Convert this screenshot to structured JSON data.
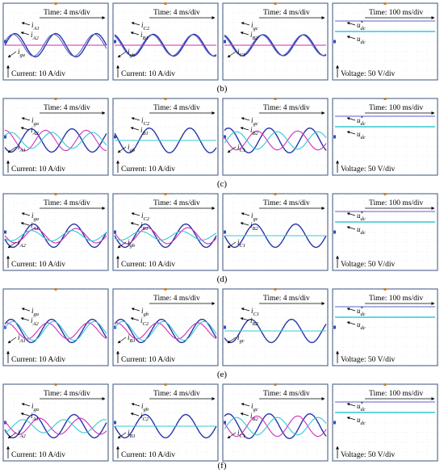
{
  "figure": {
    "colors": {
      "frame": "#5b6f93",
      "grid": "#d3d9e6",
      "blue": "#2635a8",
      "purple": "#5d62c8",
      "magenta": "#d02eb7",
      "cyan": "#36c8d4",
      "text": "#000000"
    },
    "rows": [
      {
        "label": "(b)",
        "panels": [
          {
            "time": "Time: 4 ms/div",
            "scale": "Current: 10 A/div",
            "annotations": [
              {
                "base": "i",
                "sub": "A1"
              },
              {
                "base": "i",
                "sub": "A2"
              },
              {
                "base": "i",
                "sub": "ga"
              }
            ],
            "traces": [
              {
                "color": "blue",
                "amp": 0.8,
                "phase": 0
              },
              {
                "color": "purple",
                "amp": 0.75,
                "phase": 0.05
              },
              {
                "color": "magenta",
                "amp": 0.0,
                "phase": 0
              }
            ]
          },
          {
            "time": "Time: 4 ms/div",
            "scale": "Current: 10 A/div",
            "annotations": [
              {
                "base": "i",
                "sub": "C2"
              },
              {
                "base": "i",
                "sub": "B1"
              },
              {
                "base": "i",
                "sub": "gb"
              }
            ],
            "traces": [
              {
                "color": "blue",
                "amp": 0.75,
                "phase": 0.3
              },
              {
                "color": "purple",
                "amp": 0.72,
                "phase": 0.33
              },
              {
                "color": "magenta",
                "amp": 0.0,
                "phase": 0
              }
            ]
          },
          {
            "time": "Time: 4 ms/div",
            "scale": "",
            "annotations": [
              {
                "base": "i",
                "sub": "gc"
              },
              {
                "base": "i",
                "sub": "B2"
              },
              {
                "base": "i",
                "sub": "C1"
              }
            ],
            "traces": [
              {
                "color": "blue",
                "amp": 0.72,
                "phase": 0.3
              },
              {
                "color": "purple",
                "amp": 0.7,
                "phase": 0.33
              },
              {
                "color": "magenta",
                "amp": 0.0,
                "phase": 0
              }
            ]
          },
          {
            "time": "Time: 100 ms/div",
            "scale": "Voltage: 50 V/div",
            "dc": true,
            "annotations": [
              {
                "base": "u",
                "sub": "dc",
                "sup": "*"
              },
              {
                "base": "u",
                "sub": "dc"
              }
            ]
          }
        ]
      },
      {
        "label": "(c)",
        "panels": [
          {
            "time": "Time: 4 ms/div",
            "scale": "Current: 10 A/div",
            "annotations": [
              {
                "base": "i",
                "sub": "ga"
              },
              {
                "base": "i",
                "sub": "A2"
              },
              {
                "base": "i",
                "sub": "A1"
              }
            ],
            "traces": [
              {
                "color": "blue",
                "amp": 0.8,
                "phase": 0.6
              },
              {
                "color": "magenta",
                "amp": 0.7,
                "phase": 0.25
              },
              {
                "color": "cyan",
                "amp": 0.55,
                "phase": 0.1
              }
            ]
          },
          {
            "time": "Time: 4 ms/div",
            "scale": "Current: 10 A/div",
            "annotations": [
              {
                "base": "i",
                "sub": "C2"
              },
              {
                "base": "i",
                "sub": "B1"
              },
              {
                "base": "i",
                "sub": "gb"
              }
            ],
            "traces": [
              {
                "color": "blue",
                "amp": 0.85,
                "phase": 0.4
              },
              {
                "color": "magenta",
                "amp": 0.0,
                "phase": 0
              },
              {
                "color": "cyan",
                "amp": 0.0,
                "phase": 0
              }
            ]
          },
          {
            "time": "Time: 4 ms/div",
            "scale": "",
            "annotations": [
              {
                "base": "i",
                "sub": "gc"
              },
              {
                "base": "i",
                "sub": "B2"
              },
              {
                "base": "i",
                "sub": "C1"
              }
            ],
            "traces": [
              {
                "color": "blue",
                "amp": 0.85,
                "phase": 0.15
              },
              {
                "color": "magenta",
                "amp": 0.65,
                "phase": 0.45
              },
              {
                "color": "cyan",
                "amp": 0.6,
                "phase": 0.95
              }
            ]
          },
          {
            "time": "Time: 100 ms/div",
            "scale": "Voltage: 50 V/div",
            "dc": true,
            "annotations": [
              {
                "base": "u",
                "sub": "dc",
                "sup": "*"
              },
              {
                "base": "u",
                "sub": "dc"
              }
            ]
          }
        ]
      },
      {
        "label": "(d)",
        "panels": [
          {
            "time": "Time: 4 ms/div",
            "scale": "Current: 10 A/div",
            "annotations": [
              {
                "base": "i",
                "sub": "ga"
              },
              {
                "base": "i",
                "sub": "A1"
              },
              {
                "base": "i",
                "sub": "A2"
              }
            ],
            "traces": [
              {
                "color": "blue",
                "amp": 0.8,
                "phase": 0.55
              },
              {
                "color": "magenta",
                "amp": 0.5,
                "phase": 0.5
              },
              {
                "color": "cyan",
                "amp": 0.35,
                "phase": 0.6
              }
            ]
          },
          {
            "time": "Time: 4 ms/div",
            "scale": "Current: 10 A/div",
            "annotations": [
              {
                "base": "i",
                "sub": "C2"
              },
              {
                "base": "i",
                "sub": "B1"
              },
              {
                "base": "i",
                "sub": "gb"
              }
            ],
            "traces": [
              {
                "color": "blue",
                "amp": 0.8,
                "phase": 0.5
              },
              {
                "color": "magenta",
                "amp": 0.55,
                "phase": 0.45
              },
              {
                "color": "cyan",
                "amp": 0.3,
                "phase": 0.6
              }
            ]
          },
          {
            "time": "Time: 4 ms/div",
            "scale": "",
            "annotations": [
              {
                "base": "i",
                "sub": "gc"
              },
              {
                "base": "i",
                "sub": "B2"
              },
              {
                "base": "i",
                "sub": "C1"
              }
            ],
            "traces": [
              {
                "color": "blue",
                "amp": 0.8,
                "phase": 0.5
              },
              {
                "color": "magenta",
                "amp": 0.0,
                "phase": 0
              },
              {
                "color": "cyan",
                "amp": 0.0,
                "phase": 0
              }
            ]
          },
          {
            "time": "Time: 100 ms/div",
            "scale": "Voltage: 50 V/div",
            "dc": true,
            "annotations": [
              {
                "base": "u",
                "sub": "dc",
                "sup": "*"
              },
              {
                "base": "u",
                "sub": "dc"
              }
            ]
          }
        ]
      },
      {
        "label": "(e)",
        "panels": [
          {
            "time": "",
            "scale": "Current: 10 A/div",
            "annotations": [
              {
                "base": "i",
                "sub": "ga"
              },
              {
                "base": "i",
                "sub": "A2"
              },
              {
                "base": "i",
                "sub": "A1"
              }
            ],
            "traces": [
              {
                "color": "blue",
                "amp": 0.8,
                "phase": 0.1
              },
              {
                "color": "magenta",
                "amp": 0.55,
                "phase": 0.2
              },
              {
                "color": "cyan",
                "amp": 0.65,
                "phase": 0.05
              }
            ]
          },
          {
            "time": "Time: 4 ms/div",
            "scale": "Current: 10 A/div",
            "annotations": [
              {
                "base": "i",
                "sub": "gb"
              },
              {
                "base": "i",
                "sub": "C2"
              },
              {
                "base": "i",
                "sub": "B1"
              }
            ],
            "traces": [
              {
                "color": "blue",
                "amp": 0.8,
                "phase": 0.1
              },
              {
                "color": "magenta",
                "amp": 0.55,
                "phase": 0.2
              },
              {
                "color": "cyan",
                "amp": 0.65,
                "phase": 0.05
              }
            ]
          },
          {
            "time": "Time: 4 ms/div",
            "scale": "",
            "annotations": [
              {
                "base": "i",
                "sub": "C1"
              },
              {
                "base": "i",
                "sub": "B2"
              },
              {
                "base": "i",
                "sub": "gc"
              }
            ],
            "traces": [
              {
                "color": "blue",
                "amp": 0.8,
                "phase": 0.6
              },
              {
                "color": "magenta",
                "amp": 0.0,
                "phase": 0
              },
              {
                "color": "cyan",
                "amp": 0.0,
                "phase": 0
              }
            ]
          },
          {
            "time": "Time: 100 ms/div",
            "scale": "Voltage: 50 V/div",
            "dc": true,
            "annotations": [
              {
                "base": "u",
                "sub": "dc",
                "sup": "*"
              },
              {
                "base": "u",
                "sub": "dc"
              }
            ]
          }
        ]
      },
      {
        "label": "(f)",
        "panels": [
          {
            "time": "Time: 4 ms/div",
            "scale": "Current: 10 A/div",
            "annotations": [
              {
                "base": "i",
                "sub": "ga"
              },
              {
                "base": "i",
                "sub": "A1"
              },
              {
                "base": "i",
                "sub": "A2"
              }
            ],
            "traces": [
              {
                "color": "blue",
                "amp": 0.8,
                "phase": 0.55
              },
              {
                "color": "magenta",
                "amp": 0.55,
                "phase": 0.4
              },
              {
                "color": "cyan",
                "amp": 0.45,
                "phase": 0.8
              }
            ]
          },
          {
            "time": "Time: 4 ms/div",
            "scale": "Current: 10 A/div",
            "annotations": [
              {
                "base": "i",
                "sub": "gb"
              },
              {
                "base": "i",
                "sub": "C2"
              },
              {
                "base": "i",
                "sub": "B1"
              }
            ],
            "traces": [
              {
                "color": "blue",
                "amp": 0.8,
                "phase": 0.5
              },
              {
                "color": "magenta",
                "amp": 0.0,
                "phase": 0
              },
              {
                "color": "cyan",
                "amp": 0.0,
                "phase": 0
              }
            ]
          },
          {
            "time": "Time: 4 ms/div",
            "scale": "",
            "annotations": [
              {
                "base": "i",
                "sub": "gc"
              },
              {
                "base": "i",
                "sub": "B2"
              },
              {
                "base": "i",
                "sub": "C1"
              }
            ],
            "traces": [
              {
                "color": "blue",
                "amp": 0.85,
                "phase": 0.15
              },
              {
                "color": "magenta",
                "amp": 0.7,
                "phase": 0.45
              },
              {
                "color": "cyan",
                "amp": 0.6,
                "phase": 0.95
              }
            ]
          },
          {
            "time": "Time: 100 ms/div",
            "scale": "Voltage: 50 V/div",
            "dc": true,
            "annotations": [
              {
                "base": "u",
                "sub": "dc",
                "sup": "*"
              },
              {
                "base": "u",
                "sub": "dc"
              }
            ]
          }
        ]
      }
    ]
  }
}
